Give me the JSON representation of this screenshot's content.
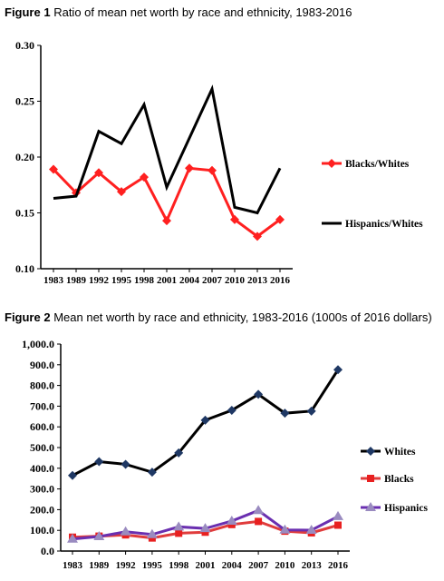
{
  "figure1": {
    "label": "Figure 1",
    "title": "Ratio of mean net worth by race and ethnicity, 1983-2016"
  },
  "figure2": {
    "label": "Figure 2",
    "title": "Mean net worth by race and ethnicity, 1983-2016 (1000s of 2016 dollars)"
  },
  "chart_data": [
    {
      "type": "line",
      "title": "Ratio of mean net worth by race and ethnicity, 1983-2016",
      "categories": [
        "1983",
        "1989",
        "1992",
        "1995",
        "1998",
        "2001",
        "2004",
        "2007",
        "2010",
        "2013",
        "2016"
      ],
      "ylim": [
        0.1,
        0.3
      ],
      "yticks": [
        "0.10",
        "0.15",
        "0.20",
        "0.25",
        "0.30"
      ],
      "grid": false,
      "legend_position": "right",
      "series": [
        {
          "name": "Blacks/Whites",
          "color": "#ff2020",
          "marker": "diamond",
          "values": [
            0.189,
            0.168,
            0.186,
            0.169,
            0.182,
            0.143,
            0.19,
            0.188,
            0.144,
            0.129,
            0.144
          ]
        },
        {
          "name": "Hispanics/Whites",
          "color": "#000000",
          "marker": "none",
          "values": [
            0.163,
            0.165,
            0.223,
            0.212,
            0.247,
            0.173,
            0.217,
            0.261,
            0.155,
            0.15,
            0.19
          ]
        }
      ]
    },
    {
      "type": "line",
      "title": "Mean net worth by race and ethnicity, 1983-2016 (1000s of 2016 dollars)",
      "categories": [
        "1983",
        "1989",
        "1992",
        "1995",
        "1998",
        "2001",
        "2004",
        "2007",
        "2010",
        "2013",
        "2016"
      ],
      "ylim": [
        0,
        1000
      ],
      "yticks": [
        "0.0",
        "100.0",
        "200.0",
        "300.0",
        "400.0",
        "500.0",
        "600.0",
        "700.0",
        "800.0",
        "900.0",
        "1,000.0"
      ],
      "grid": false,
      "legend_position": "right",
      "series": [
        {
          "name": "Whites",
          "color": "#000000",
          "marker_color": "#1f3864",
          "marker": "diamond",
          "values": [
            365,
            432,
            419,
            381,
            474,
            632,
            680,
            757,
            666,
            676,
            876
          ]
        },
        {
          "name": "Blacks",
          "color": "#e03c3c",
          "marker_color": "#e82020",
          "marker": "square",
          "values": [
            67,
            72,
            78,
            63,
            86,
            91,
            128,
            143,
            96,
            88,
            125
          ]
        },
        {
          "name": "Hispanics",
          "color": "#6a2fb0",
          "marker_color": "#9a8bc0",
          "marker": "triangle",
          "values": [
            58,
            70,
            93,
            80,
            117,
            109,
            145,
            196,
            102,
            101,
            167
          ]
        }
      ]
    }
  ]
}
